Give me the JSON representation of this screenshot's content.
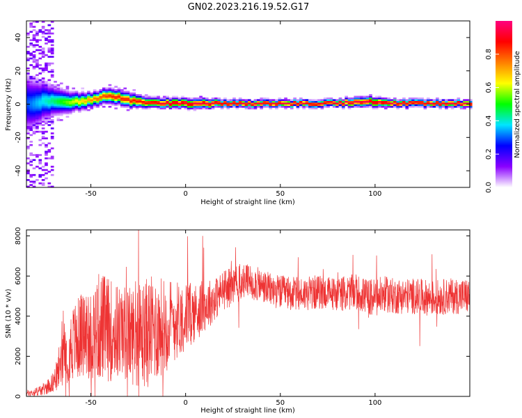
{
  "figure": {
    "title": "GN02.2023.216.19.52.G17"
  },
  "chart_data": [
    {
      "type": "heatmap",
      "title": "GN02.2023.216.19.52.G17",
      "xlabel": "Height of straight line (km)",
      "ylabel": "Frequency (Hz)",
      "xlim": [
        -84,
        150
      ],
      "ylim": [
        -50,
        50
      ],
      "xticks": [
        -50,
        0,
        50,
        100
      ],
      "yticks": [
        -40,
        -20,
        0,
        20,
        40
      ],
      "colorbar": {
        "label": "Normalized spectral amplitude",
        "range": [
          0,
          1
        ],
        "ticks": [
          0.0,
          0.2,
          0.4,
          0.6,
          0.8
        ],
        "colormap": [
          "#ffffff",
          "#8a00ff",
          "#0000ff",
          "#00e5ff",
          "#00ff00",
          "#ffff00",
          "#ff7f00",
          "#ff0000",
          "#ff007f"
        ]
      },
      "series": [
        {
          "values_description_x": [
            -84,
            -70,
            -60,
            -50,
            -45,
            -40,
            -30,
            -20,
            -10,
            0,
            10,
            20,
            30,
            40,
            50,
            60,
            70,
            80,
            90,
            100,
            110,
            120,
            130,
            140,
            150
          ],
          "x": [
            -84,
            -70,
            -60,
            -50,
            -45,
            -40,
            -30,
            -20,
            -10,
            0,
            10,
            20,
            30,
            40,
            50,
            60,
            70,
            80,
            90,
            100,
            110,
            120,
            130,
            140,
            150
          ],
          "peak_frequency": [
            0,
            2,
            1,
            2,
            4,
            5,
            2,
            0,
            0,
            0,
            0,
            0,
            0,
            0,
            0,
            0,
            0,
            0,
            1,
            1,
            0,
            0,
            0,
            0,
            0
          ],
          "band_halfwidth": [
            12,
            6,
            4,
            3,
            3,
            3,
            3,
            2,
            2,
            2,
            2,
            1.5,
            1.5,
            1.5,
            1.5,
            1.5,
            1.5,
            1.5,
            2,
            2,
            1.5,
            1.5,
            1.5,
            1.5,
            1.5
          ],
          "peak_amplitude": [
            0.3,
            0.45,
            0.6,
            0.75,
            0.8,
            0.85,
            0.85,
            0.9,
            0.95,
            0.95,
            0.95,
            0.95,
            0.95,
            0.95,
            0.95,
            0.95,
            0.95,
            0.95,
            0.95,
            0.95,
            0.95,
            0.95,
            0.95,
            0.95,
            0.95
          ]
        }
      ],
      "colors": {
        "grid": "#000000",
        "background": "#ffffff"
      }
    },
    {
      "type": "line",
      "xlabel": "Height of straight line (km)",
      "ylabel": "SNR (10 * v/v)",
      "xlim": [
        -84,
        150
      ],
      "ylim": [
        0,
        8300
      ],
      "xticks": [
        -50,
        0,
        50,
        100
      ],
      "yticks": [
        0,
        2000,
        4000,
        6000,
        8000
      ],
      "series": [
        {
          "color": "#ee3333",
          "x": [
            -84,
            -80,
            -75,
            -70,
            -67,
            -64,
            -60,
            -55,
            -50,
            -45,
            -40,
            -35,
            -30,
            -25,
            -20,
            -15,
            -10,
            -5,
            0,
            5,
            10,
            15,
            20,
            25,
            30,
            35,
            40,
            45,
            50,
            60,
            70,
            80,
            90,
            95,
            100,
            105,
            110,
            120,
            130,
            140,
            150
          ],
          "center": [
            150,
            200,
            350,
            700,
            1200,
            1900,
            2600,
            3000,
            3200,
            3500,
            3300,
            3200,
            3100,
            3000,
            3200,
            3400,
            3600,
            3800,
            4000,
            4200,
            4500,
            4800,
            5300,
            5500,
            5700,
            5700,
            5500,
            5300,
            5200,
            5100,
            5200,
            5100,
            5200,
            5000,
            4900,
            5100,
            5000,
            5000,
            4900,
            5000,
            5000
          ],
          "spread": [
            150,
            200,
            300,
            500,
            900,
            1400,
            1900,
            2200,
            2500,
            2800,
            2600,
            2400,
            2400,
            2600,
            2800,
            2600,
            2400,
            2000,
            1700,
            1500,
            1300,
            1100,
            1000,
            1000,
            950,
            900,
            850,
            850,
            850,
            850,
            850,
            850,
            900,
            900,
            1000,
            900,
            900,
            900,
            900,
            900,
            900
          ]
        }
      ],
      "colors": {
        "grid": "#000000",
        "background": "#ffffff"
      }
    }
  ]
}
